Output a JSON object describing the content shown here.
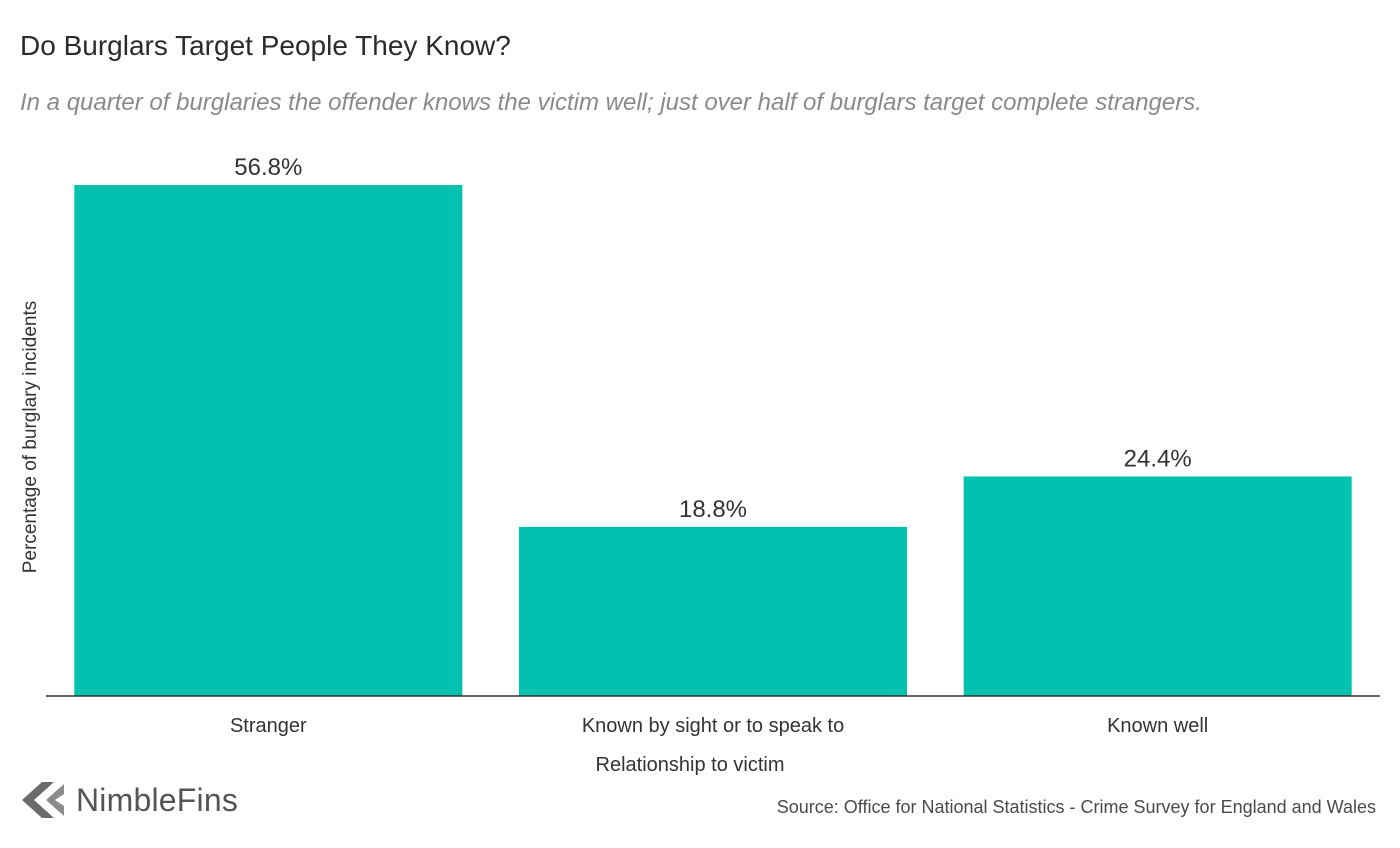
{
  "chart_data": {
    "type": "bar",
    "title": "Do Burglars Target People They Know?",
    "subtitle": "In a quarter of burglaries the offender knows the victim well; just over half of burglars target complete strangers.",
    "categories": [
      "Stranger",
      "Known by sight or to speak to",
      "Known well"
    ],
    "values": [
      56.8,
      18.8,
      24.4
    ],
    "value_labels": [
      "56.8%",
      "18.8%",
      "24.4%"
    ],
    "xlabel": "Relationship to victim",
    "ylabel": "Percentage of burglary incidents",
    "ylim": [
      0,
      56.8
    ],
    "grid": false,
    "bar_color": "#00C2AE",
    "axis_color": "#333333"
  },
  "footer": {
    "brand": "NimbleFins",
    "brand_icon": "chevron-left-icon",
    "source": "Source: Office for National Statistics - Crime Survey for England and Wales"
  }
}
